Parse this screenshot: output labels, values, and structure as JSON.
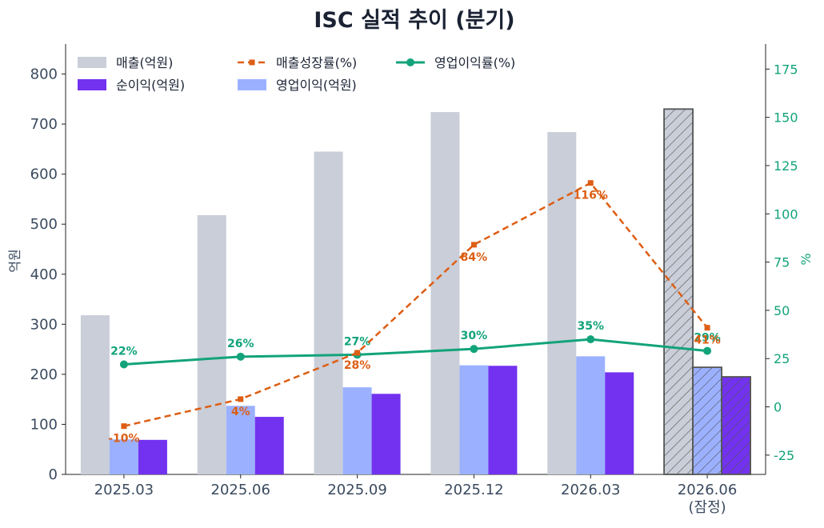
{
  "chart_data": {
    "type": "bar",
    "title": "ISC 실적 추이 (분기)",
    "xlabel": "",
    "ylabel": "억원",
    "ylabel_right": "%",
    "categories": [
      "2025.03",
      "2025.06",
      "2025.09",
      "2025.12",
      "2026.03",
      "2026.06\n(잠정)"
    ],
    "ylim": [
      0,
      860
    ],
    "ylim_right": [
      -35,
      188
    ],
    "yticks": [
      0,
      100,
      200,
      300,
      400,
      500,
      600,
      700,
      800
    ],
    "yticks_right": [
      -25,
      0,
      25,
      50,
      75,
      100,
      125,
      150,
      175
    ],
    "estimate_index": 5,
    "legend_position": "top-left",
    "series": [
      {
        "name": "매출(억원)",
        "kind": "bar",
        "axis": "left",
        "color": "#c9ced8",
        "values": [
          318,
          518,
          645,
          724,
          684,
          730
        ]
      },
      {
        "name": "영업이익(억원)",
        "kind": "bar",
        "axis": "left",
        "color": "#9bb1ff",
        "values": [
          70,
          137,
          174,
          218,
          236,
          214
        ]
      },
      {
        "name": "순이익(억원)",
        "kind": "bar",
        "axis": "left",
        "color": "#7232ef",
        "values": [
          69,
          115,
          161,
          217,
          204,
          195
        ]
      },
      {
        "name": "영업이익률(%)",
        "kind": "line",
        "axis": "right",
        "color": "#12a37a",
        "values": [
          22,
          26,
          27,
          30,
          35,
          29
        ],
        "labels": [
          "22%",
          "26%",
          "27%",
          "30%",
          "35%",
          "29%"
        ]
      },
      {
        "name": "매출성장률(%)",
        "kind": "line-dashed",
        "axis": "right",
        "color": "#dd5e14",
        "values": [
          -10,
          4,
          28,
          84,
          116,
          41
        ],
        "labels": [
          "-10%",
          "4%",
          "28%",
          "84%",
          "116%",
          "41%"
        ]
      }
    ]
  }
}
